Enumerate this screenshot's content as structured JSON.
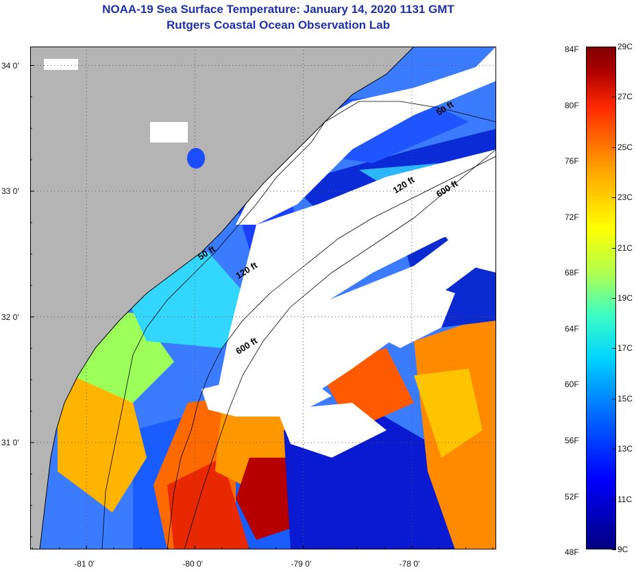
{
  "title_line1": "NOAA-19 Sea Surface Temperature:  January 14, 2020 1131 GMT",
  "title_line2": "Rutgers Coastal Ocean Observation Lab",
  "map": {
    "lon_range": [
      -81.52,
      -77.22
    ],
    "lat_range": [
      30.15,
      34.15
    ],
    "lon_ticks": [
      {
        "value": -81,
        "label": "-81 0'"
      },
      {
        "value": -80,
        "label": "-80 0'"
      },
      {
        "value": -79,
        "label": "-79 0'"
      },
      {
        "value": -78,
        "label": "-78 0'"
      }
    ],
    "lat_ticks": [
      {
        "value": 34,
        "label": "34 0'"
      },
      {
        "value": 33,
        "label": "33 0'"
      },
      {
        "value": 32,
        "label": "32 0'"
      },
      {
        "value": 31,
        "label": "31 0'"
      }
    ],
    "grid": "dotted",
    "land_color": "#b4b4b4",
    "cloud_color": "#ffffff",
    "isobaths": [
      {
        "label": "50 ft",
        "label_positions": [
          [
            -77.75,
            33.6
          ],
          [
            -79.95,
            32.45
          ]
        ]
      },
      {
        "label": "120 ft",
        "label_positions": [
          [
            -78.15,
            32.98
          ],
          [
            -79.6,
            32.3
          ]
        ]
      },
      {
        "label": "600 ft",
        "label_positions": [
          [
            -77.75,
            32.95
          ],
          [
            -79.6,
            31.7
          ]
        ]
      }
    ]
  },
  "colorbar": {
    "min_c": 9,
    "max_c": 29,
    "fahrenheit_labels": [
      "84F",
      "80F",
      "76F",
      "72F",
      "68F",
      "64F",
      "60F",
      "56F",
      "52F",
      "48F"
    ],
    "celsius_labels": [
      "29C",
      "27C",
      "25C",
      "23C",
      "21C",
      "19C",
      "17C",
      "15C",
      "13C",
      "11C",
      "9C"
    ]
  }
}
